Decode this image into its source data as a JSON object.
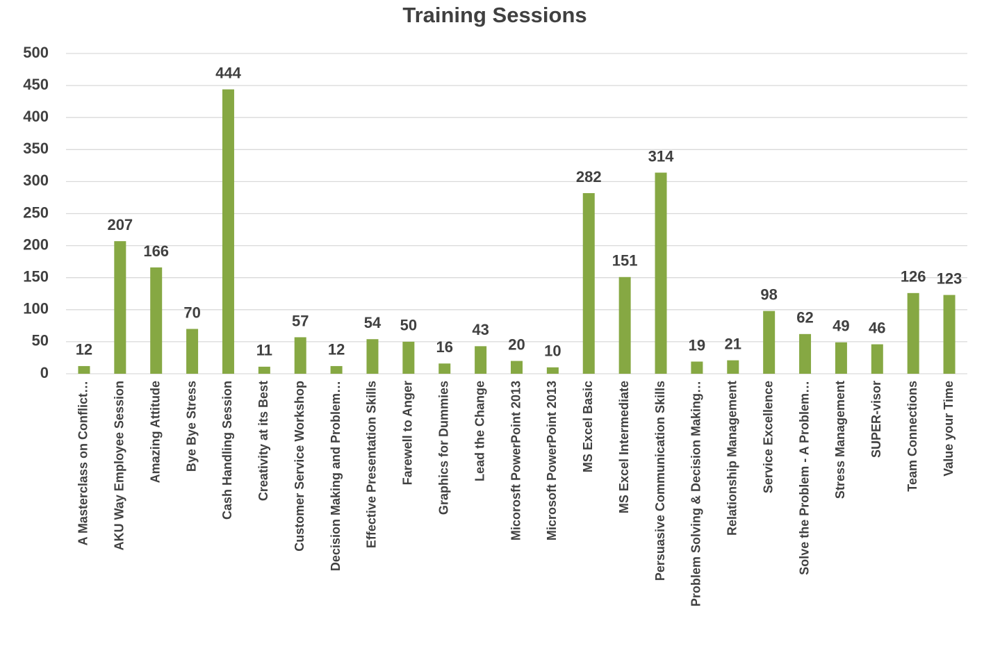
{
  "chart_data": {
    "type": "bar",
    "title": "Training Sessions",
    "categories": [
      "A Masterclass on Conflict…",
      "AKU Way Employee Session",
      "Amazing Attitude",
      "Bye Bye Stress",
      "Cash Handling Session",
      "Creativity at its Best",
      "Customer Service Workshop",
      "Decision Making and Problem…",
      "Effective Presentation Skills",
      "Farewell to Anger",
      "Graphics for Dummies",
      "Lead the Change",
      "Micorosft PowerPoint 2013",
      "Microsoft PowerPoint 2013",
      "MS Excel Basic",
      "MS Excel Intermediate",
      "Persuasive Communication Skills",
      "Problem Solving & Decision Making…",
      "Relationship Management",
      "Service Excellence",
      "Solve the Problem - A Problem…",
      "Stress Management",
      "SUPER-visor",
      "Team Connections",
      "Value your Time"
    ],
    "values": [
      12,
      207,
      166,
      70,
      444,
      11,
      57,
      12,
      54,
      50,
      16,
      43,
      20,
      10,
      282,
      151,
      314,
      19,
      21,
      98,
      62,
      49,
      46,
      126,
      123
    ],
    "color": "#86a843",
    "ylim": [
      0,
      500
    ],
    "yticks": [
      0,
      50,
      100,
      150,
      200,
      250,
      300,
      350,
      400,
      450,
      500
    ],
    "grid": true
  }
}
